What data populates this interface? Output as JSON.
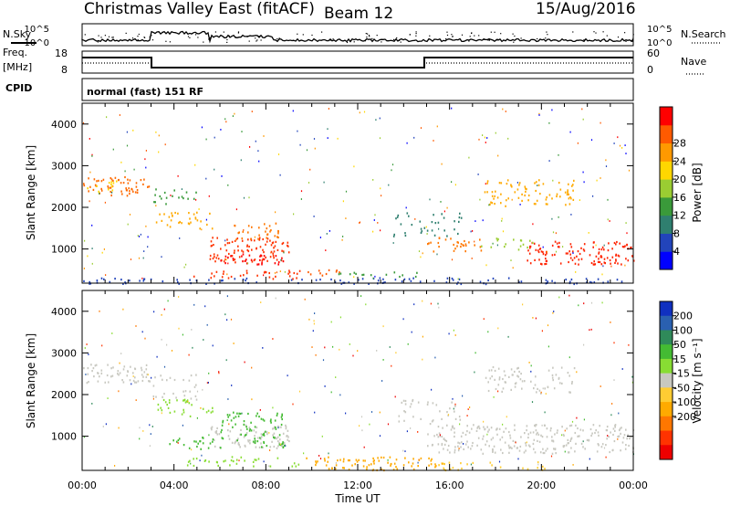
{
  "header": {
    "station": "Christmas Valley East (fitACF)",
    "beam": "Beam 12",
    "date": "15/Aug/2016"
  },
  "top_panels": {
    "nsky_label": "N.Sky",
    "nsearch_label": "N.Search",
    "nsky_ticks": [
      "10^5",
      "10^0"
    ],
    "nsearch_ticks": [
      "10^5",
      "10^0"
    ],
    "freq_label": "Freq.",
    "freq_unit": "[MHz]",
    "freq_ticks": [
      "18",
      "8"
    ],
    "nave_label": "Nave",
    "nave_ticks": [
      "60",
      "0"
    ],
    "cpid_label": "CPID",
    "cpid_text": "normal (fast) 151 RF"
  },
  "chart_data": [
    {
      "type": "heatmap",
      "name": "power",
      "ylabel": "Slant Range [km]",
      "xlabel": "Time UT",
      "xlim": [
        "00:00",
        "24:00"
      ],
      "ylim": [
        180,
        4500
      ],
      "y_ticks": [
        "1000",
        "2000",
        "3000",
        "4000"
      ],
      "x_ticks": [
        "00:00",
        "04:00",
        "08:00",
        "12:00",
        "16:00",
        "20:00",
        "00:00"
      ],
      "colorbar": {
        "label": "Power [dB]",
        "ticks": [
          "4",
          "8",
          "12",
          "16",
          "20",
          "24",
          "28"
        ],
        "colors": [
          "#0000ff",
          "#2244bb",
          "#2f7f6f",
          "#3a9a3a",
          "#9acd32",
          "#ffd700",
          "#ff9900",
          "#ff5a00",
          "#ff0000"
        ]
      }
    },
    {
      "type": "heatmap",
      "name": "velocity",
      "ylabel": "Slant Range [km]",
      "xlabel": "Time UT",
      "xlim": [
        "00:00",
        "24:00"
      ],
      "ylim": [
        180,
        4500
      ],
      "y_ticks": [
        "1000",
        "2000",
        "3000",
        "4000"
      ],
      "x_ticks": [
        "00:00",
        "04:00",
        "08:00",
        "12:00",
        "16:00",
        "20:00",
        "00:00"
      ],
      "colorbar": {
        "label": "Velocity [m s⁻¹]",
        "ticks": [
          "200",
          "100",
          "50",
          "15",
          "-15",
          "-50",
          "-100",
          "-200"
        ],
        "colors": [
          "#1030c0",
          "#2a60b0",
          "#2f8a5a",
          "#44bb33",
          "#88dd33",
          "#c8c8c0",
          "#ffcc33",
          "#ffaa00",
          "#ff7700",
          "#ff3300",
          "#ee0000"
        ]
      }
    }
  ],
  "scatter_regions": {
    "power": [
      {
        "t0": 0.0,
        "t1": 2.9,
        "r0": 2300,
        "r1": 2750,
        "color": "#ff6a00",
        "density": 0.8
      },
      {
        "t0": 0.2,
        "t1": 1.8,
        "r0": 2400,
        "r1": 2650,
        "color": "#ffd700",
        "density": 0.5
      },
      {
        "t0": 2.9,
        "t1": 5.0,
        "r0": 2100,
        "r1": 2500,
        "color": "#3a9a3a",
        "density": 0.4
      },
      {
        "t0": 3.1,
        "t1": 5.7,
        "r0": 1500,
        "r1": 1900,
        "color": "#ffaa00",
        "density": 0.55
      },
      {
        "t0": 5.5,
        "t1": 9.0,
        "r0": 700,
        "r1": 1300,
        "color": "#ff3300",
        "density": 0.85
      },
      {
        "t0": 6.3,
        "t1": 8.6,
        "r0": 1250,
        "r1": 1650,
        "color": "#ff7700",
        "density": 0.6
      },
      {
        "t0": 6.0,
        "t1": 9.0,
        "r0": 650,
        "r1": 900,
        "color": "#ff0000",
        "density": 0.7
      },
      {
        "t0": 4.8,
        "t1": 9.5,
        "r0": 300,
        "r1": 500,
        "color": "#ff3300",
        "density": 0.6
      },
      {
        "t0": 9.6,
        "t1": 11.2,
        "r0": 360,
        "r1": 520,
        "color": "#ff5a00",
        "density": 0.75
      },
      {
        "t0": 10.8,
        "t1": 14.8,
        "r0": 350,
        "r1": 480,
        "color": "#3a9a3a",
        "density": 0.5
      },
      {
        "t0": 0.0,
        "t1": 24.0,
        "r0": 180,
        "r1": 330,
        "color": "#2244bb",
        "density": 0.55
      },
      {
        "t0": 13.5,
        "t1": 16.5,
        "r0": 1300,
        "r1": 1900,
        "color": "#2f7f6f",
        "density": 0.35
      },
      {
        "t0": 15.0,
        "t1": 17.5,
        "r0": 950,
        "r1": 1300,
        "color": "#ff7700",
        "density": 0.6
      },
      {
        "t0": 17.5,
        "t1": 21.5,
        "r0": 2050,
        "r1": 2700,
        "color": "#ffaa00",
        "density": 0.55
      },
      {
        "t0": 19.3,
        "t1": 24.0,
        "r0": 650,
        "r1": 1200,
        "color": "#ff2200",
        "density": 0.85
      },
      {
        "t0": 17.2,
        "t1": 19.6,
        "r0": 1000,
        "r1": 1300,
        "color": "#9acd32",
        "density": 0.4
      }
    ],
    "velocity": [
      {
        "t0": 0.0,
        "t1": 2.9,
        "r0": 2300,
        "r1": 2750,
        "color": "#c8c8c0",
        "density": 0.8
      },
      {
        "t0": 2.9,
        "t1": 5.0,
        "r0": 1900,
        "r1": 2500,
        "color": "#c8c8c0",
        "density": 0.4
      },
      {
        "t0": 3.1,
        "t1": 5.7,
        "r0": 1500,
        "r1": 1900,
        "color": "#88dd33",
        "density": 0.55
      },
      {
        "t0": 5.5,
        "t1": 9.0,
        "r0": 700,
        "r1": 1300,
        "color": "#c8c8c0",
        "density": 0.75
      },
      {
        "t0": 6.0,
        "t1": 8.8,
        "r0": 750,
        "r1": 1600,
        "color": "#44bb33",
        "density": 0.6
      },
      {
        "t0": 3.6,
        "t1": 6.0,
        "r0": 700,
        "r1": 1000,
        "color": "#44bb33",
        "density": 0.55
      },
      {
        "t0": 4.5,
        "t1": 9.5,
        "r0": 300,
        "r1": 550,
        "color": "#88dd33",
        "density": 0.5
      },
      {
        "t0": 9.6,
        "t1": 15.5,
        "r0": 200,
        "r1": 520,
        "color": "#ffaa00",
        "density": 0.75
      },
      {
        "t0": 15.5,
        "t1": 20.5,
        "r0": 200,
        "r1": 400,
        "color": "#ffcc33",
        "density": 0.45
      },
      {
        "t0": 13.5,
        "t1": 16.5,
        "r0": 1300,
        "r1": 1900,
        "color": "#c8c8c0",
        "density": 0.35
      },
      {
        "t0": 15.0,
        "t1": 24.0,
        "r0": 600,
        "r1": 1300,
        "color": "#c8c8c0",
        "density": 0.75
      },
      {
        "t0": 17.5,
        "t1": 21.5,
        "r0": 2050,
        "r1": 2700,
        "color": "#c8c8c0",
        "density": 0.5
      }
    ]
  }
}
